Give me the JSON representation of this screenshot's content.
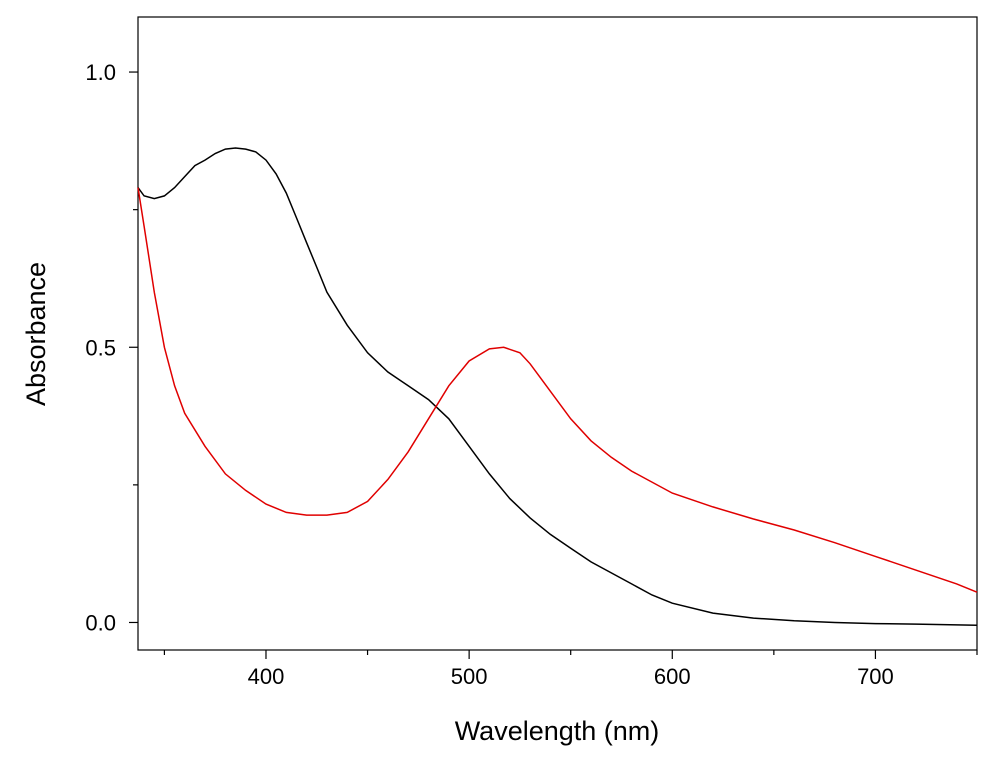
{
  "chart_data": {
    "type": "line",
    "title": "",
    "xlabel": "Wavelength (nm)",
    "ylabel": "Absorbance",
    "xlim": [
      337,
      750
    ],
    "ylim": [
      -0.05,
      1.1
    ],
    "x_ticks": [
      400,
      500,
      600,
      700
    ],
    "x_tick_labels": [
      "400",
      "500",
      "600",
      "700"
    ],
    "x_minor_ticks": [
      350,
      450,
      550,
      650,
      750
    ],
    "y_ticks": [
      0.0,
      0.5,
      1.0
    ],
    "y_tick_labels": [
      "0.0",
      "0.5",
      "1.0"
    ],
    "y_minor_ticks": [
      0.25,
      0.75
    ],
    "grid": false,
    "legend": "none",
    "series": [
      {
        "name": "black",
        "color": "#000000",
        "x": [
          337,
          340,
          345,
          350,
          355,
          360,
          365,
          370,
          375,
          380,
          385,
          390,
          395,
          400,
          405,
          410,
          415,
          420,
          425,
          430,
          440,
          450,
          460,
          470,
          480,
          490,
          500,
          510,
          520,
          530,
          540,
          550,
          560,
          570,
          580,
          590,
          600,
          620,
          640,
          660,
          680,
          700,
          720,
          750
        ],
        "y": [
          0.79,
          0.775,
          0.77,
          0.775,
          0.79,
          0.81,
          0.83,
          0.84,
          0.852,
          0.86,
          0.862,
          0.86,
          0.855,
          0.84,
          0.815,
          0.78,
          0.735,
          0.69,
          0.645,
          0.6,
          0.54,
          0.49,
          0.455,
          0.43,
          0.405,
          0.37,
          0.32,
          0.27,
          0.225,
          0.19,
          0.16,
          0.135,
          0.11,
          0.09,
          0.07,
          0.05,
          0.035,
          0.017,
          0.008,
          0.003,
          0.0,
          -0.002,
          -0.003,
          -0.005
        ]
      },
      {
        "name": "red",
        "color": "#e00000",
        "x": [
          337,
          340,
          345,
          350,
          355,
          360,
          370,
          380,
          390,
          400,
          410,
          420,
          430,
          440,
          450,
          460,
          470,
          480,
          490,
          500,
          510,
          517,
          525,
          530,
          540,
          550,
          560,
          570,
          580,
          600,
          620,
          640,
          660,
          680,
          700,
          720,
          740,
          750
        ],
        "y": [
          0.79,
          0.72,
          0.6,
          0.5,
          0.43,
          0.38,
          0.32,
          0.27,
          0.24,
          0.215,
          0.2,
          0.195,
          0.195,
          0.2,
          0.22,
          0.26,
          0.31,
          0.37,
          0.43,
          0.475,
          0.497,
          0.5,
          0.49,
          0.47,
          0.42,
          0.37,
          0.33,
          0.3,
          0.275,
          0.235,
          0.21,
          0.188,
          0.168,
          0.145,
          0.12,
          0.095,
          0.07,
          0.055
        ]
      }
    ]
  }
}
